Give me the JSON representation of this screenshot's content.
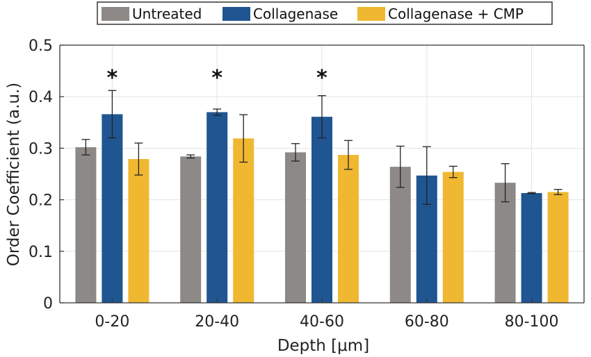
{
  "chart_data": {
    "type": "bar",
    "title": "",
    "xlabel": "Depth [μm]",
    "ylabel": "Order Coefficient (a.u.)",
    "ylim": [
      0,
      0.5
    ],
    "yticks": [
      "0",
      "0.1",
      "0.2",
      "0.3",
      "0.4",
      "0.5"
    ],
    "grid": true,
    "legend_position": "top-center",
    "categories": [
      "0-20",
      "20-40",
      "40-60",
      "60-80",
      "80-100"
    ],
    "series": [
      {
        "name": "Untreated",
        "color": "#8d8986",
        "values": [
          0.302,
          0.284,
          0.292,
          0.264,
          0.233
        ],
        "errors": [
          0.015,
          0.003,
          0.017,
          0.04,
          0.037
        ]
      },
      {
        "name": "Collagenase",
        "color": "#1f5591",
        "values": [
          0.366,
          0.37,
          0.361,
          0.247,
          0.213
        ],
        "errors": [
          0.046,
          0.006,
          0.041,
          0.056,
          0.001
        ]
      },
      {
        "name": "Collagenase + CMP",
        "color": "#f0b830",
        "values": [
          0.279,
          0.319,
          0.287,
          0.254,
          0.215
        ],
        "errors": [
          0.031,
          0.046,
          0.028,
          0.011,
          0.005
        ]
      }
    ],
    "annotations": [
      {
        "text": "*",
        "category": "0-20",
        "y": 0.45
      },
      {
        "text": "*",
        "category": "20-40",
        "y": 0.45
      },
      {
        "text": "*",
        "category": "40-60",
        "y": 0.45
      }
    ]
  }
}
